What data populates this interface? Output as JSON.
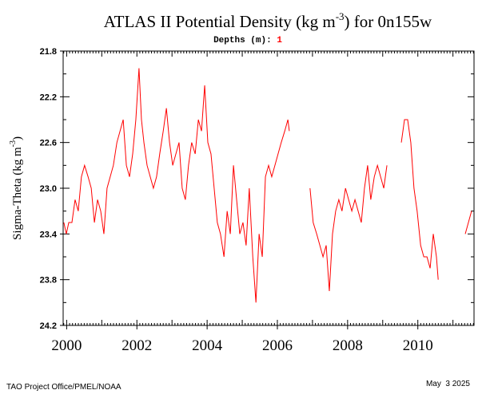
{
  "chart_data": {
    "type": "line",
    "title": [
      "ATLAS II Potential Density (kg m",
      "-3",
      ") for 0n155w"
    ],
    "subtitle": [
      "Depths (m):",
      "1"
    ],
    "y_label": [
      "Sigma-Theta (kg m",
      "-3",
      ")"
    ],
    "footer_left": "TAO Project Office/PMEL/NOAA",
    "footer_right": "May  3 2025",
    "color": "#ff0000",
    "xlim": [
      1999.9,
      2011.6
    ],
    "xticks": [
      {
        "value": 2000,
        "label": "2000"
      },
      {
        "value": 2002,
        "label": "2002"
      },
      {
        "value": 2004,
        "label": "2004"
      },
      {
        "value": 2006,
        "label": "2006"
      },
      {
        "value": 2008,
        "label": "2008"
      },
      {
        "value": 2010,
        "label": "2010"
      }
    ],
    "ylim": [
      24.2,
      21.8
    ],
    "yticks": [
      21.8,
      22.2,
      22.6,
      {
        "value": 23,
        "label": "23.0"
      },
      23.4,
      23.8,
      24.2
    ],
    "x": [
      1999.92,
      1999.99,
      2000.06,
      2000.15,
      2000.24,
      2000.33,
      2000.42,
      2000.51,
      2000.61,
      2000.7,
      2000.79,
      2000.88,
      2000.97,
      2001.06,
      2001.15,
      2001.24,
      2001.33,
      2001.43,
      2001.52,
      2001.61,
      2001.7,
      2001.79,
      2001.88,
      2001.97,
      2002.06,
      2002.13,
      2002.2,
      2002.29,
      2002.38,
      2002.47,
      2002.56,
      2002.65,
      2002.75,
      2002.84,
      2002.93,
      2003.02,
      2003.11,
      2003.2,
      2003.29,
      2003.38,
      2003.47,
      2003.56,
      2003.66,
      2003.75,
      2003.84,
      2003.93,
      2004.02,
      2004.11,
      2004.2,
      2004.29,
      2004.38,
      2004.48,
      2004.57,
      2004.66,
      2004.75,
      2004.84,
      2004.93,
      2005.02,
      2005.11,
      2005.2,
      2005.3,
      2005.39,
      2005.48,
      2005.57,
      2005.66,
      2005.75,
      2005.84,
      2005.93,
      2006.02,
      2006.11,
      2006.21,
      2006.3,
      2006.34,
      2006.6,
      2006.93,
      2007.02,
      2007.12,
      2007.21,
      2007.3,
      2007.39,
      2007.48,
      2007.57,
      2007.66,
      2007.75,
      2007.84,
      2007.94,
      2008.03,
      2008.12,
      2008.21,
      2008.3,
      2008.39,
      2008.48,
      2008.57,
      2008.66,
      2008.76,
      2008.85,
      2008.94,
      2009.03,
      2009.12,
      2009.3,
      2009.53,
      2009.62,
      2009.71,
      2009.8,
      2009.89,
      2009.98,
      2010.08,
      2010.17,
      2010.26,
      2010.35,
      2010.44,
      2010.53,
      2010.58,
      2010.9,
      2011.35,
      2011.44,
      2011.53
    ],
    "series": [
      {
        "values": [
          23.3,
          23.4,
          23.3,
          23.3,
          23.1,
          23.2,
          22.9,
          22.8,
          22.9,
          23.0,
          23.3,
          23.1,
          23.2,
          23.4,
          23.0,
          22.9,
          22.8,
          22.6,
          22.5,
          22.4,
          22.8,
          22.9,
          22.7,
          22.4,
          21.95,
          22.4,
          22.6,
          22.8,
          22.9,
          23.0,
          22.9,
          22.7,
          22.5,
          22.3,
          22.6,
          22.8,
          22.7,
          22.6,
          23.0,
          23.1,
          22.8,
          22.6,
          22.7,
          22.4,
          22.5,
          22.1,
          22.6,
          22.7,
          23.0,
          23.3,
          23.4,
          23.6,
          23.2,
          23.4,
          22.8,
          23.1,
          23.4,
          23.3,
          23.5,
          23.0,
          23.6,
          24.0,
          23.4,
          23.6,
          22.9,
          22.8,
          22.9,
          22.8,
          22.7,
          22.6,
          22.5,
          22.4,
          22.5,
          null,
          23.0,
          23.3,
          23.4,
          23.5,
          23.6,
          23.5,
          23.9,
          23.4,
          23.2,
          23.1,
          23.2,
          23.0,
          23.1,
          23.2,
          23.1,
          23.2,
          23.3,
          23.0,
          22.8,
          23.1,
          22.9,
          22.8,
          22.9,
          23.0,
          22.8,
          null,
          22.6,
          22.4,
          22.4,
          22.6,
          23.0,
          23.2,
          23.5,
          23.6,
          23.6,
          23.7,
          23.4,
          23.6,
          23.8,
          null,
          23.4,
          23.3,
          23.2
        ]
      }
    ]
  }
}
